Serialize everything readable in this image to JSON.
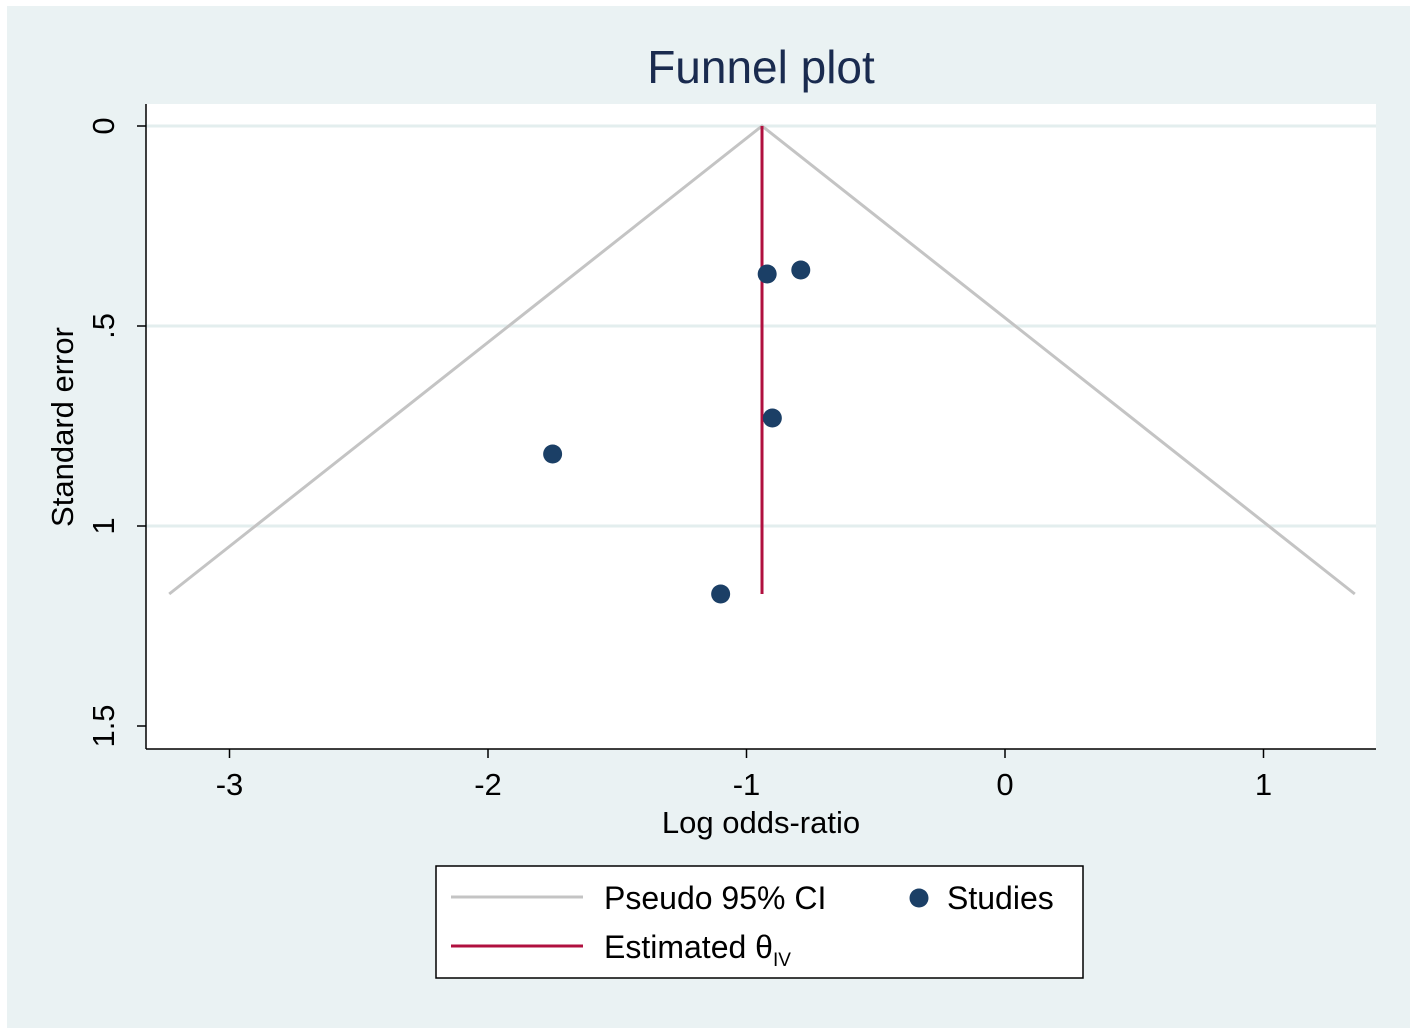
{
  "chart_data": {
    "type": "scatter",
    "title": "Funnel plot",
    "xlabel": "Log odds-ratio",
    "ylabel": "Standard error",
    "xlim": [
      -3.32,
      1.45
    ],
    "ylim": [
      0,
      1.55
    ],
    "y_reversed": true,
    "xticks": [
      -3,
      -2,
      -1,
      0,
      1
    ],
    "xtick_labels": [
      "-3",
      "-2",
      "-1",
      "0",
      "1"
    ],
    "yticks": [
      0,
      0.5,
      1,
      1.5
    ],
    "ytick_labels": [
      "0",
      ".5",
      "1",
      "1.5"
    ],
    "grid": true,
    "pooled_estimate": -0.94,
    "ci_max_se": 1.17,
    "studies": [
      {
        "x": -0.92,
        "y": 0.37
      },
      {
        "x": -0.79,
        "y": 0.36
      },
      {
        "x": -0.9,
        "y": 0.73
      },
      {
        "x": -1.75,
        "y": 0.82
      },
      {
        "x": -1.1,
        "y": 1.17
      }
    ],
    "legend": {
      "position": "bottom",
      "ci_label": "Pseudo 95% CI",
      "studies_label": "Studies",
      "estimate_label": "Estimated θ",
      "estimate_subscript": "IV"
    },
    "colors": {
      "ci_line": "#c4c4c4",
      "estimate_line": "#b0103f",
      "points": "#1b3f66",
      "background": "#eaf2f3",
      "gridline": "#e3eeee",
      "title": "#1a2b4f"
    }
  }
}
